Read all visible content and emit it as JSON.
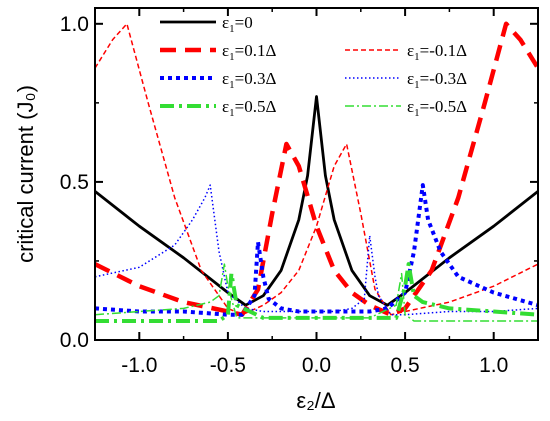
{
  "chart_data": {
    "type": "line",
    "xlabel": "ε₂/Δ",
    "ylabel": "critical current (J₀)",
    "xlim": [
      -1.25,
      1.25
    ],
    "ylim": [
      0.0,
      1.05
    ],
    "xticks": [
      -1.0,
      -0.5,
      0.0,
      0.5,
      1.0
    ],
    "xtick_labels": [
      "-1.0",
      "-0.5",
      "0.0",
      "0.5",
      "1.0"
    ],
    "yticks": [
      0.0,
      0.5,
      1.0
    ],
    "ytick_labels": [
      "0.0",
      "0.5",
      "1.0"
    ],
    "legend_placement": "top",
    "grid": false,
    "series": [
      {
        "name": "ε₁=0",
        "color": "#000000",
        "style": "solid",
        "width": 2.8,
        "x": [
          -1.25,
          -1.0,
          -0.75,
          -0.5,
          -0.4,
          -0.3,
          -0.2,
          -0.1,
          -0.05,
          0.0,
          0.05,
          0.1,
          0.2,
          0.3,
          0.4,
          0.5,
          0.75,
          1.0,
          1.25
        ],
        "y": [
          0.47,
          0.36,
          0.26,
          0.15,
          0.11,
          0.14,
          0.22,
          0.38,
          0.52,
          0.77,
          0.52,
          0.38,
          0.22,
          0.14,
          0.11,
          0.15,
          0.26,
          0.36,
          0.47
        ]
      },
      {
        "name": "ε₁=0.1Δ",
        "color": "#ff0000",
        "style": "dash",
        "width": 4.5,
        "x": [
          -1.25,
          -1.0,
          -0.75,
          -0.5,
          -0.42,
          -0.33,
          -0.25,
          -0.17,
          -0.1,
          0.0,
          0.1,
          0.2,
          0.3,
          0.42,
          0.5,
          0.65,
          0.8,
          0.95,
          1.07,
          1.15,
          1.25
        ],
        "y": [
          0.24,
          0.17,
          0.12,
          0.09,
          0.08,
          0.16,
          0.4,
          0.62,
          0.55,
          0.36,
          0.22,
          0.15,
          0.11,
          0.08,
          0.1,
          0.22,
          0.45,
          0.75,
          1.0,
          0.95,
          0.86
        ]
      },
      {
        "name": "ε₁=-0.1Δ",
        "color": "#ff0000",
        "style": "shortdash",
        "width": 1.5,
        "x": [
          -1.25,
          -1.15,
          -1.07,
          -0.95,
          -0.8,
          -0.65,
          -0.5,
          -0.42,
          -0.3,
          -0.2,
          -0.1,
          0.0,
          0.1,
          0.17,
          0.25,
          0.33,
          0.42,
          0.5,
          0.75,
          1.0,
          1.25
        ],
        "y": [
          0.86,
          0.95,
          1.0,
          0.75,
          0.45,
          0.22,
          0.1,
          0.08,
          0.11,
          0.15,
          0.22,
          0.36,
          0.55,
          0.62,
          0.4,
          0.16,
          0.08,
          0.09,
          0.12,
          0.17,
          0.24
        ]
      },
      {
        "name": "ε₁=0.3Δ",
        "color": "#0000ff",
        "style": "dot",
        "width": 4.0,
        "x": [
          -1.25,
          -1.0,
          -0.75,
          -0.5,
          -0.42,
          -0.35,
          -0.33,
          -0.3,
          -0.27,
          -0.2,
          -0.1,
          0.0,
          0.1,
          0.2,
          0.3,
          0.4,
          0.5,
          0.55,
          0.6,
          0.63,
          0.7,
          0.8,
          1.0,
          1.25
        ],
        "y": [
          0.1,
          0.09,
          0.09,
          0.08,
          0.08,
          0.14,
          0.31,
          0.2,
          0.13,
          0.1,
          0.09,
          0.09,
          0.09,
          0.09,
          0.09,
          0.1,
          0.15,
          0.28,
          0.49,
          0.38,
          0.28,
          0.2,
          0.15,
          0.11
        ]
      },
      {
        "name": "ε₁=-0.3Δ",
        "color": "#0000ff",
        "style": "finedot",
        "width": 1.5,
        "x": [
          -1.25,
          -1.0,
          -0.8,
          -0.7,
          -0.63,
          -0.6,
          -0.55,
          -0.5,
          -0.4,
          -0.3,
          -0.2,
          -0.1,
          0.0,
          0.1,
          0.2,
          0.27,
          0.3,
          0.33,
          0.35,
          0.42,
          0.5,
          0.75,
          1.0,
          1.25
        ],
        "y": [
          0.2,
          0.23,
          0.3,
          0.38,
          0.45,
          0.49,
          0.28,
          0.15,
          0.1,
          0.09,
          0.09,
          0.09,
          0.09,
          0.09,
          0.1,
          0.13,
          0.33,
          0.2,
          0.14,
          0.08,
          0.08,
          0.09,
          0.09,
          0.1
        ]
      },
      {
        "name": "ε₁=0.5Δ",
        "color": "#33dd33",
        "style": "dashdot",
        "width": 4.0,
        "x": [
          -1.25,
          -1.0,
          -0.75,
          -0.55,
          -0.5,
          -0.48,
          -0.45,
          -0.3,
          -0.1,
          0.0,
          0.1,
          0.3,
          0.45,
          0.5,
          0.52,
          0.55,
          0.6,
          0.75,
          1.0,
          1.25
        ],
        "y": [
          0.06,
          0.06,
          0.06,
          0.06,
          0.08,
          0.21,
          0.11,
          0.07,
          0.07,
          0.07,
          0.07,
          0.07,
          0.07,
          0.17,
          0.24,
          0.14,
          0.12,
          0.1,
          0.09,
          0.08
        ]
      },
      {
        "name": "ε₁=-0.5Δ",
        "color": "#33dd33",
        "style": "dashdot-thin",
        "width": 1.5,
        "x": [
          -1.25,
          -1.0,
          -0.75,
          -0.6,
          -0.55,
          -0.52,
          -0.5,
          -0.45,
          -0.3,
          -0.1,
          0.0,
          0.1,
          0.3,
          0.45,
          0.48,
          0.5,
          0.55,
          0.75,
          1.0,
          1.25
        ],
        "y": [
          0.08,
          0.09,
          0.1,
          0.12,
          0.14,
          0.24,
          0.17,
          0.07,
          0.07,
          0.07,
          0.07,
          0.07,
          0.07,
          0.11,
          0.21,
          0.08,
          0.06,
          0.06,
          0.06,
          0.06
        ]
      }
    ]
  }
}
